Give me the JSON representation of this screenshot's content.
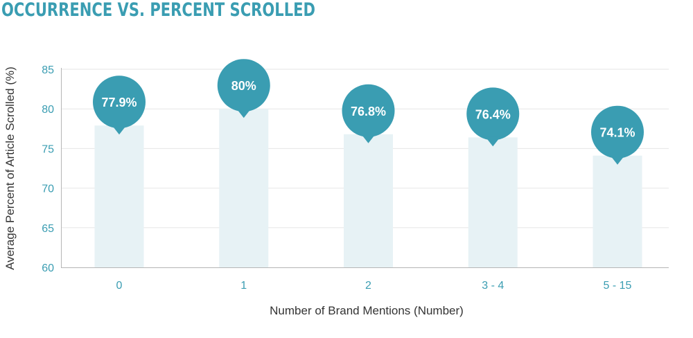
{
  "title": "OCCURRENCE VS. PERCENT SCROLLED",
  "colors": {
    "accent": "#3a9db2",
    "bar_fill": "#e7f2f5",
    "grid": "#e6e6e6",
    "axis": "#b5b5b5",
    "text_dark": "#333333"
  },
  "chart_data": {
    "type": "bar",
    "title": "OCCURRENCE VS. PERCENT SCROLLED",
    "categories": [
      "0",
      "1",
      "2",
      "3 - 4",
      "5 - 15"
    ],
    "values": [
      77.9,
      80,
      76.8,
      76.4,
      74.1
    ],
    "data_labels": [
      "77.9%",
      "80%",
      "76.8%",
      "76.4%",
      "74.1%"
    ],
    "xlabel": "Number of Brand Mentions (Number)",
    "ylabel": "Average Percent of Article Scrolled (%)",
    "ylim": [
      60,
      85
    ],
    "yticks": [
      "60",
      "65",
      "70",
      "75",
      "80",
      "85"
    ],
    "grid": true,
    "legend": "none"
  }
}
